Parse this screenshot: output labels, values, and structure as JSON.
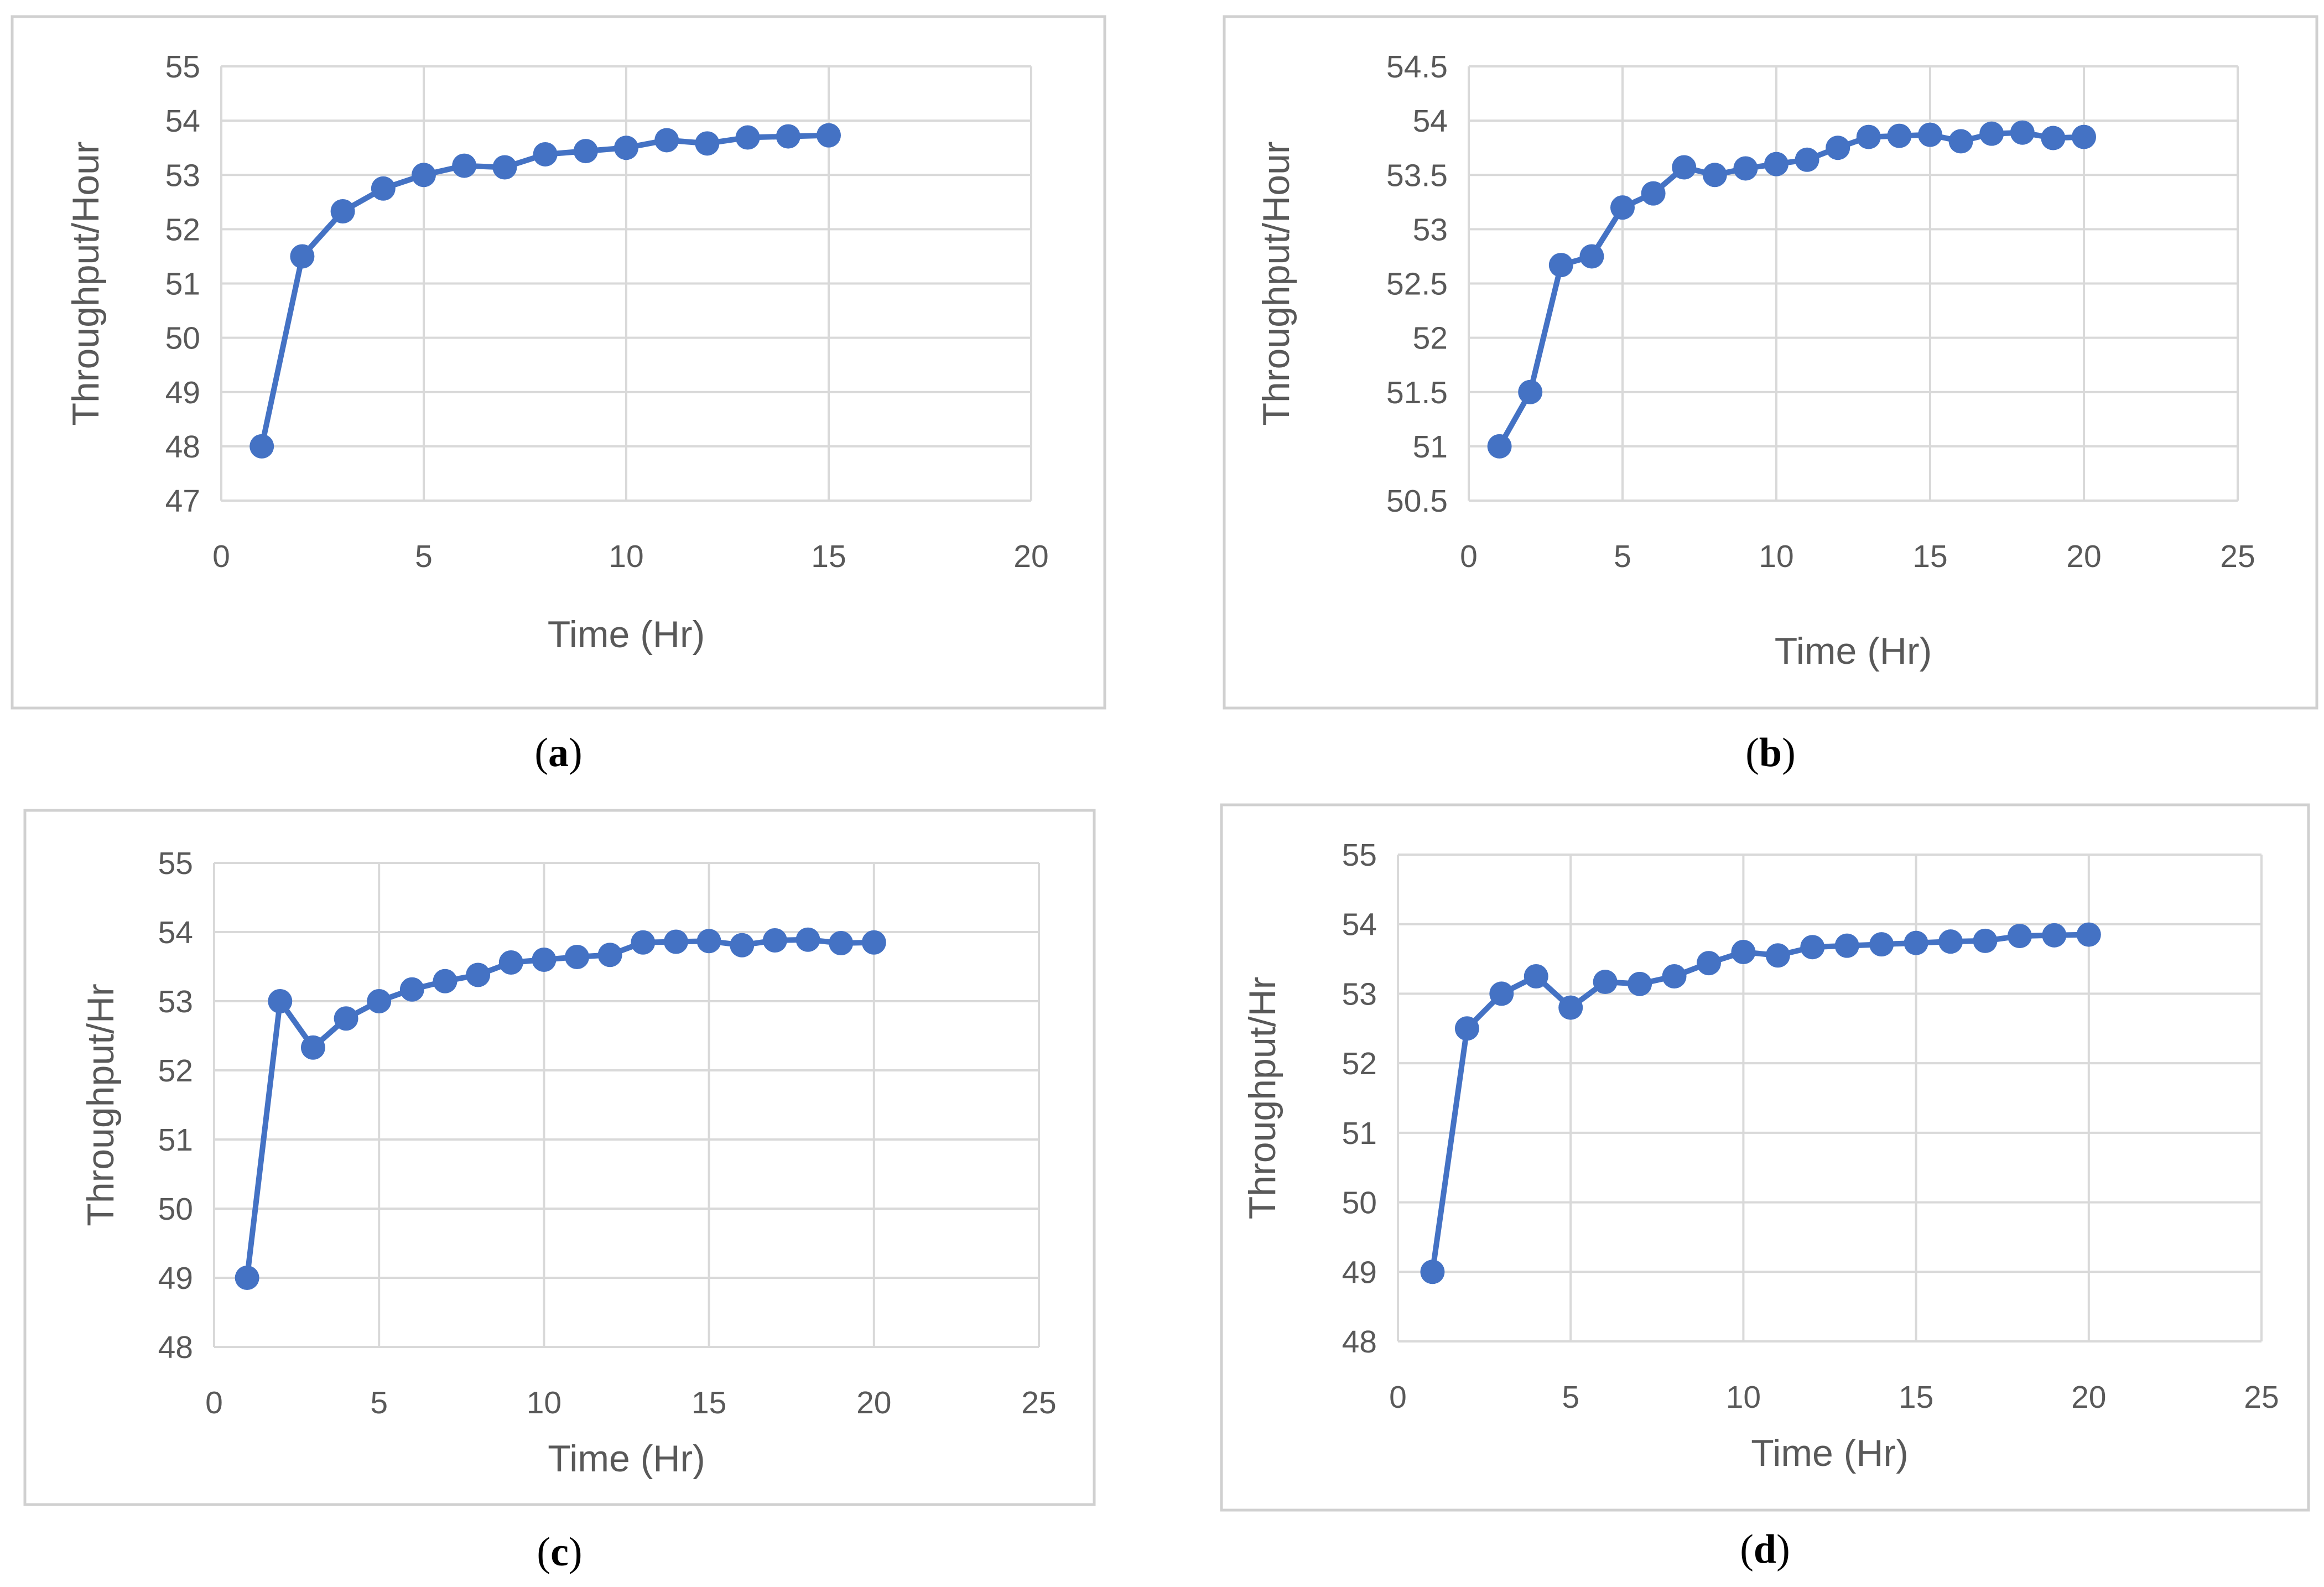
{
  "figure": {
    "accent_color": "#4472c4",
    "grid_color": "#d9d9d9"
  },
  "chart_data": [
    {
      "type": "line",
      "panel": "a",
      "caption": {
        "open": "(",
        "letter": "a",
        "close": ")"
      },
      "title": "",
      "xlabel": "Time (Hr)",
      "ylabel": "Throughput/Hour",
      "xlim": [
        0,
        20
      ],
      "ylim": [
        47,
        55
      ],
      "xticks": [
        0,
        5,
        10,
        15,
        20
      ],
      "yticks": [
        47,
        48,
        49,
        50,
        51,
        52,
        53,
        54,
        55
      ],
      "ytick_labels": [
        "47",
        "48",
        "49",
        "50",
        "51",
        "52",
        "53",
        "54",
        "55"
      ],
      "grid": true,
      "series": [
        {
          "name": "Throughput",
          "x": [
            1,
            2,
            3,
            4,
            5,
            6,
            7,
            8,
            9,
            10,
            11,
            12,
            13,
            14,
            15
          ],
          "values": [
            48,
            51.5,
            52.33,
            52.75,
            53,
            53.17,
            53.14,
            53.38,
            53.44,
            53.5,
            53.64,
            53.58,
            53.69,
            53.71,
            53.73
          ]
        }
      ]
    },
    {
      "type": "line",
      "panel": "b",
      "caption": {
        "open": "(",
        "letter": "b",
        "close": ")"
      },
      "title": "",
      "xlabel": "Time (Hr)",
      "ylabel": "Throughput/Hour",
      "xlim": [
        0,
        25
      ],
      "ylim": [
        50.5,
        54.5
      ],
      "xticks": [
        0,
        5,
        10,
        15,
        20,
        25
      ],
      "yticks": [
        50.5,
        51,
        51.5,
        52,
        52.5,
        53,
        53.5,
        54,
        54.5
      ],
      "ytick_labels": [
        "50.5",
        "51",
        "51.5",
        "52",
        "52.5",
        "53",
        "53.5",
        "54",
        "54.5"
      ],
      "grid": true,
      "series": [
        {
          "name": "Throughput",
          "x": [
            1,
            2,
            3,
            4,
            5,
            6,
            7,
            8,
            9,
            10,
            11,
            12,
            13,
            14,
            15,
            16,
            17,
            18,
            19,
            20
          ],
          "values": [
            51,
            51.5,
            52.67,
            52.75,
            53.2,
            53.33,
            53.57,
            53.5,
            53.56,
            53.6,
            53.64,
            53.75,
            53.85,
            53.86,
            53.87,
            53.81,
            53.88,
            53.89,
            53.84,
            53.85
          ]
        }
      ]
    },
    {
      "type": "line",
      "panel": "c",
      "caption": {
        "open": "(",
        "letter": "c",
        "close": ")"
      },
      "title": "",
      "xlabel": "Time (Hr)",
      "ylabel": "Throughput/Hr",
      "xlim": [
        0,
        25
      ],
      "ylim": [
        48,
        55
      ],
      "xticks": [
        0,
        5,
        10,
        15,
        20,
        25
      ],
      "yticks": [
        48,
        49,
        50,
        51,
        52,
        53,
        54,
        55
      ],
      "ytick_labels": [
        "48",
        "49",
        "50",
        "51",
        "52",
        "53",
        "54",
        "55"
      ],
      "grid": true,
      "series": [
        {
          "name": "Throughput",
          "x": [
            1,
            2,
            3,
            4,
            5,
            6,
            7,
            8,
            9,
            10,
            11,
            12,
            13,
            14,
            15,
            16,
            17,
            18,
            19,
            20
          ],
          "values": [
            49,
            53,
            52.33,
            52.75,
            53,
            53.17,
            53.29,
            53.38,
            53.56,
            53.6,
            53.64,
            53.67,
            53.85,
            53.86,
            53.87,
            53.81,
            53.88,
            53.89,
            53.84,
            53.85
          ]
        }
      ]
    },
    {
      "type": "line",
      "panel": "d",
      "caption": {
        "open": "(",
        "letter": "d",
        "close": ")"
      },
      "title": "",
      "xlabel": "Time (Hr)",
      "ylabel": "Throughput/Hr",
      "xlim": [
        0,
        25
      ],
      "ylim": [
        48,
        55
      ],
      "xticks": [
        0,
        5,
        10,
        15,
        20,
        25
      ],
      "yticks": [
        48,
        49,
        50,
        51,
        52,
        53,
        54,
        55
      ],
      "ytick_labels": [
        "48",
        "49",
        "50",
        "51",
        "52",
        "53",
        "54",
        "55"
      ],
      "grid": true,
      "series": [
        {
          "name": "Throughput",
          "x": [
            1,
            2,
            3,
            4,
            5,
            6,
            7,
            8,
            9,
            10,
            11,
            12,
            13,
            14,
            15,
            16,
            17,
            18,
            19,
            20
          ],
          "values": [
            49,
            52.5,
            53,
            53.25,
            52.8,
            53.17,
            53.14,
            53.25,
            53.44,
            53.6,
            53.55,
            53.67,
            53.69,
            53.71,
            53.73,
            53.75,
            53.76,
            53.83,
            53.84,
            53.85
          ]
        }
      ]
    }
  ]
}
